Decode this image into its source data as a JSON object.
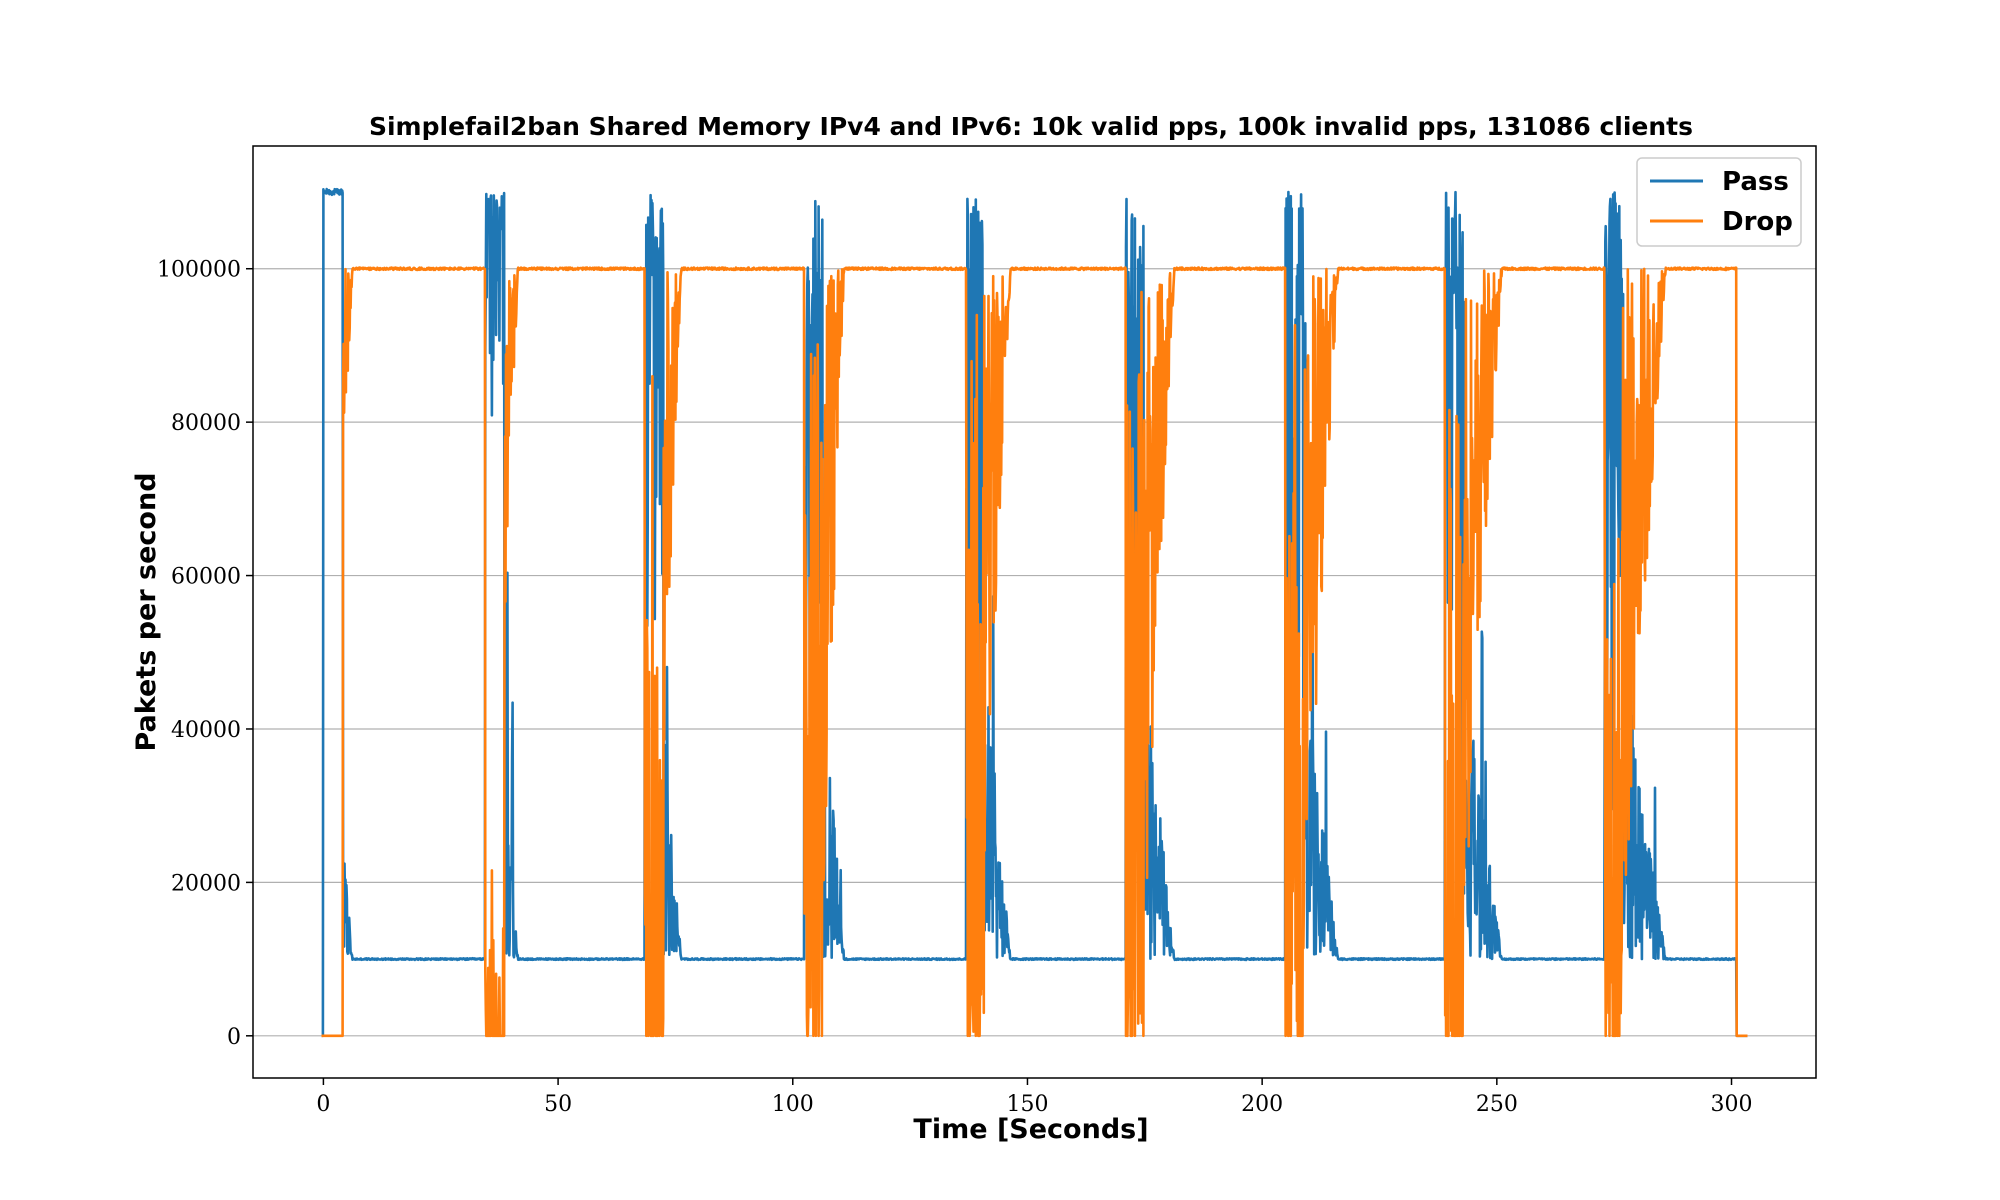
{
  "chart_data": {
    "type": "line",
    "title": "Simplefail2ban Shared Memory IPv4 and IPv6:  10k valid pps, 100k invalid pps, 131086 clients",
    "xlabel": "Time [Seconds]",
    "ylabel": "Pakets per second",
    "xlim": [
      -15,
      318
    ],
    "ylim": [
      -5500,
      116000
    ],
    "xticks": [
      0,
      50,
      100,
      150,
      200,
      250,
      300
    ],
    "yticks": [
      0,
      20000,
      40000,
      60000,
      80000,
      100000
    ],
    "grid": "y",
    "legend": "top-right",
    "cycle_starts": [
      0,
      34.5,
      68.5,
      102.5,
      137,
      171,
      205,
      239,
      273
    ],
    "end_time": 301,
    "series": [
      {
        "name": "Pass",
        "color": "#1f77b4",
        "description": "High ~110000 during each attack-start window, baseline 10000 otherwise",
        "baseline": 10000,
        "peak": 110000
      },
      {
        "name": "Drop",
        "color": "#ff7f0e",
        "description": "~100000 steady, drops toward 0 during each attack-start window",
        "baseline": 100000,
        "low": 0
      }
    ]
  }
}
